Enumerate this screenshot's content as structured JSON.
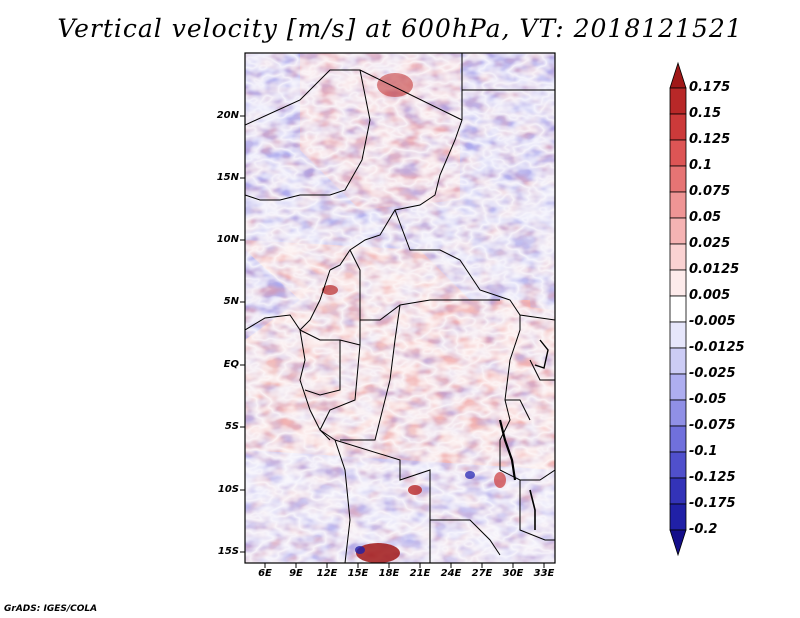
{
  "title": "Vertical velocity [m/s] at 600hPa, VT: 2018121521",
  "credit": "GrADS: IGES/COLA",
  "map": {
    "lat_ticks": [
      "20N",
      "15N",
      "10N",
      "5N",
      "EQ",
      "5S",
      "10S",
      "15S"
    ],
    "lon_ticks": [
      "6E",
      "9E",
      "12E",
      "15E",
      "18E",
      "21E",
      "24E",
      "27E",
      "30E",
      "33E"
    ]
  },
  "colorbar": {
    "labels": [
      "0.175",
      "0.15",
      "0.125",
      "0.1",
      "0.075",
      "0.05",
      "0.025",
      "0.0125",
      "0.005",
      "-0.005",
      "-0.0125",
      "-0.025",
      "-0.05",
      "-0.075",
      "-0.1",
      "-0.125",
      "-0.175",
      "-0.2"
    ],
    "colors": [
      "#a01818",
      "#b82828",
      "#cc3a3a",
      "#dd5555",
      "#e67474",
      "#ef9595",
      "#f5b3b3",
      "#fad2d2",
      "#fdebeb",
      "#ffffff",
      "#e6e6fb",
      "#ccccf5",
      "#aeaef0",
      "#9090e6",
      "#7070dc",
      "#5050cc",
      "#3333b8",
      "#2020a6",
      "#140e8a"
    ]
  }
}
